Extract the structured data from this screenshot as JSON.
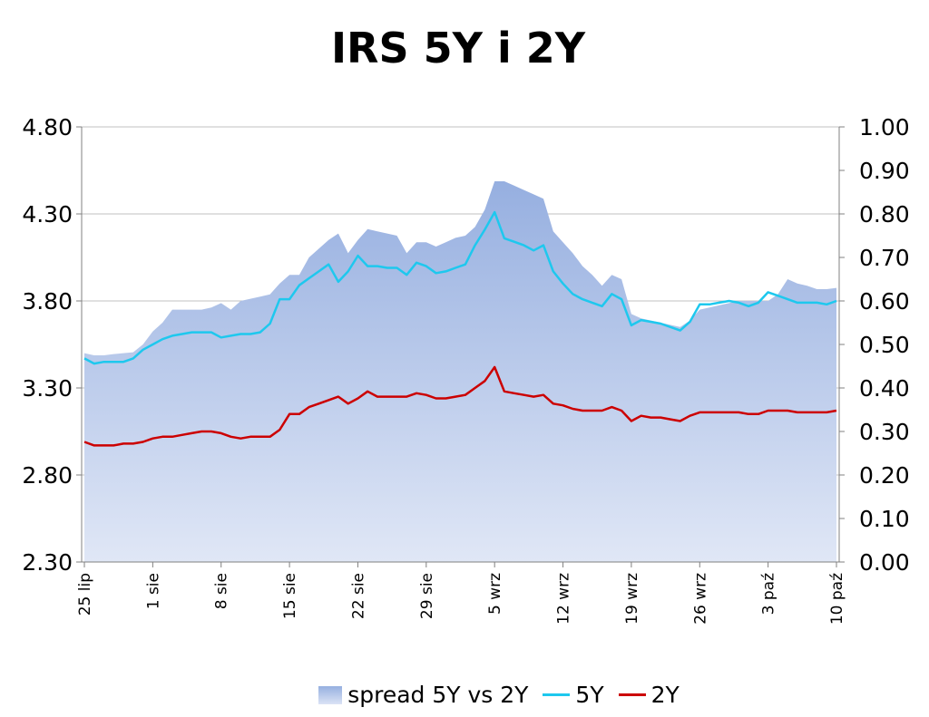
{
  "chart_data": {
    "type": "line",
    "title": "IRS 5Y i 2Y",
    "xlabel": "",
    "ylabel": "",
    "ylim_left": [
      2.3,
      4.8
    ],
    "ylim_right": [
      0.0,
      1.0
    ],
    "yticks_left": [
      "4.80",
      "4.30",
      "3.80",
      "3.30",
      "2.80",
      "2.30"
    ],
    "yticks_right": [
      "1.00",
      "0.90",
      "0.80",
      "0.70",
      "0.60",
      "0.50",
      "0.40",
      "0.30",
      "0.20",
      "0.10",
      "0.00"
    ],
    "x_tick_labels": [
      "25 lip",
      "1 sie",
      "8 sie",
      "15 sie",
      "22 sie",
      "29 sie",
      "5 wrz",
      "12 wrz",
      "19 wrz",
      "26 wrz",
      "3 paź",
      "10 paź"
    ],
    "x_tick_index": [
      0,
      7,
      14,
      21,
      28,
      35,
      42,
      49,
      56,
      63,
      70,
      77
    ],
    "x_count": 78,
    "grid": true,
    "legend_position": "bottom",
    "colors": {
      "spread": "#a9bce8",
      "5Y": "#1ec8ee",
      "2Y": "#cc0000"
    },
    "series": [
      {
        "name": "spread 5Y vs 2Y",
        "axis": "right",
        "type": "area",
        "values": [
          0.48,
          0.475,
          0.475,
          0.478,
          0.48,
          0.482,
          0.5,
          0.53,
          0.55,
          0.58,
          0.58,
          0.58,
          0.58,
          0.585,
          0.595,
          0.58,
          0.6,
          0.605,
          0.61,
          0.615,
          0.64,
          0.66,
          0.66,
          0.7,
          0.72,
          0.74,
          0.755,
          0.71,
          0.74,
          0.765,
          0.76,
          0.755,
          0.75,
          0.71,
          0.735,
          0.735,
          0.725,
          0.735,
          0.745,
          0.75,
          0.77,
          0.81,
          0.875,
          0.875,
          0.865,
          0.855,
          0.845,
          0.835,
          0.76,
          0.735,
          0.71,
          0.68,
          0.66,
          0.635,
          0.66,
          0.65,
          0.57,
          0.56,
          0.555,
          0.55,
          0.545,
          0.54,
          0.555,
          0.58,
          0.585,
          0.59,
          0.595,
          0.6,
          0.6,
          0.6,
          0.6,
          0.615,
          0.65,
          0.64,
          0.635,
          0.627,
          0.627,
          0.63
        ]
      },
      {
        "name": "5Y",
        "axis": "left",
        "type": "line",
        "values": [
          3.47,
          3.44,
          3.45,
          3.45,
          3.45,
          3.47,
          3.52,
          3.55,
          3.58,
          3.6,
          3.61,
          3.62,
          3.62,
          3.62,
          3.59,
          3.6,
          3.61,
          3.61,
          3.62,
          3.67,
          3.81,
          3.81,
          3.89,
          3.93,
          3.97,
          4.01,
          3.91,
          3.97,
          4.06,
          4.0,
          4.0,
          3.99,
          3.99,
          3.95,
          4.02,
          4.0,
          3.96,
          3.97,
          3.99,
          4.01,
          4.12,
          4.21,
          4.31,
          4.16,
          4.14,
          4.12,
          4.09,
          4.12,
          3.97,
          3.9,
          3.84,
          3.81,
          3.79,
          3.77,
          3.84,
          3.81,
          3.66,
          3.69,
          3.68,
          3.67,
          3.65,
          3.63,
          3.68,
          3.78,
          3.78,
          3.79,
          3.8,
          3.79,
          3.77,
          3.79,
          3.85,
          3.83,
          3.81,
          3.79,
          3.79,
          3.79,
          3.78,
          3.8
        ]
      },
      {
        "name": "2Y",
        "axis": "left",
        "type": "line",
        "values": [
          2.99,
          2.97,
          2.97,
          2.97,
          2.98,
          2.98,
          2.99,
          3.01,
          3.02,
          3.02,
          3.03,
          3.04,
          3.05,
          3.05,
          3.04,
          3.02,
          3.01,
          3.02,
          3.02,
          3.02,
          3.06,
          3.15,
          3.15,
          3.19,
          3.21,
          3.23,
          3.25,
          3.21,
          3.24,
          3.28,
          3.25,
          3.25,
          3.25,
          3.25,
          3.27,
          3.26,
          3.24,
          3.24,
          3.25,
          3.26,
          3.3,
          3.34,
          3.42,
          3.28,
          3.27,
          3.26,
          3.25,
          3.26,
          3.21,
          3.2,
          3.18,
          3.17,
          3.17,
          3.17,
          3.19,
          3.17,
          3.11,
          3.14,
          3.13,
          3.13,
          3.12,
          3.11,
          3.14,
          3.16,
          3.16,
          3.16,
          3.16,
          3.16,
          3.15,
          3.15,
          3.17,
          3.17,
          3.17,
          3.16,
          3.16,
          3.16,
          3.16,
          3.17
        ]
      }
    ]
  },
  "legend": {
    "spread_label": "spread 5Y vs 2Y",
    "five_label": "5Y",
    "two_label": "2Y"
  }
}
